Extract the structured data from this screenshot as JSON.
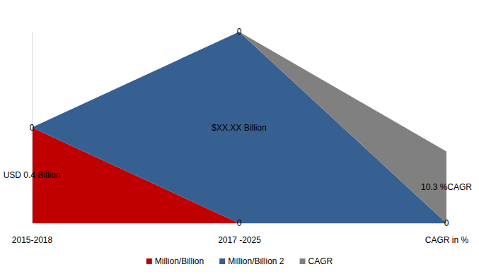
{
  "chart_data": {
    "type": "area",
    "stacked": true,
    "categories": [
      "2015-2018",
      "2017 -2025",
      "CAGR in %"
    ],
    "series": [
      {
        "name": "Million/Billion",
        "color": "#c00000",
        "values": [
          4,
          0,
          null
        ],
        "value_labels": [
          null,
          "0",
          null
        ]
      },
      {
        "name": "Million/Billion 2",
        "color": "#376092",
        "values": [
          0,
          8,
          0
        ],
        "value_labels": [
          "0",
          null,
          "0"
        ]
      },
      {
        "name": "CAGR",
        "color": "#808080",
        "values": [
          null,
          0,
          3
        ],
        "value_labels": [
          null,
          "0",
          null
        ]
      }
    ],
    "ylim": [
      0,
      8
    ],
    "tick_labels": "x",
    "data_labels": true,
    "legend": "bottom",
    "annotations": [
      {
        "text": "USD 0.4 Billion",
        "x": "2015-2018",
        "y": 2
      },
      {
        "text": "$XX.XX Billion",
        "x": "2017 -2025",
        "y": 4
      },
      {
        "text": "10.3 %CAGR",
        "x": "CAGR in %",
        "y": 1.5
      }
    ]
  }
}
